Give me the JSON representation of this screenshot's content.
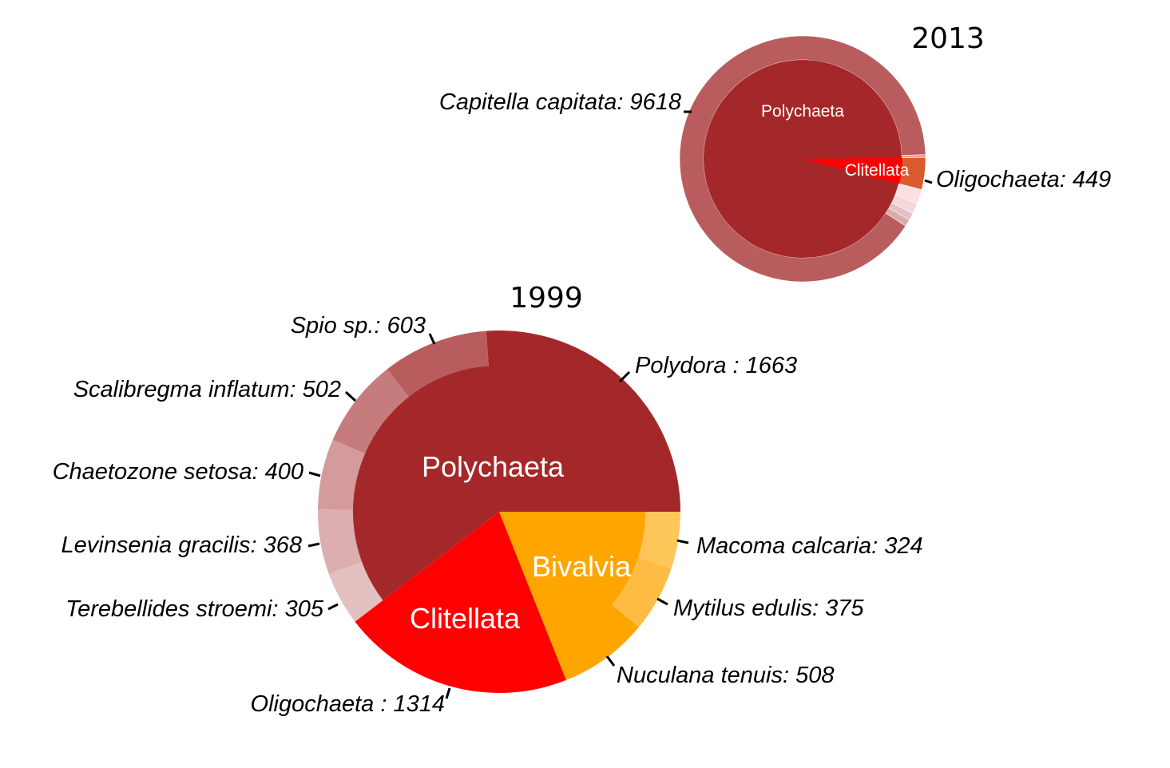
{
  "chart_data": [
    {
      "type": "sunburst",
      "title": "2013",
      "groups": [
        {
          "name": "Polychaeta",
          "color": "#A4282A"
        },
        {
          "name": "Clitellata",
          "color": "#FF0000"
        }
      ],
      "inner_ring": [
        {
          "group": "Polychaeta",
          "value": 10200
        },
        {
          "group": "Clitellata",
          "value": 449
        },
        {
          "group": "",
          "value": 40
        }
      ],
      "outer_ring": [
        {
          "label": "Capitella capitata: 9618",
          "species": "Capitella capitata",
          "value": 9618,
          "group": "Polychaeta",
          "color": "#B95C5D"
        },
        {
          "label": "",
          "value": 100,
          "group": "Polychaeta",
          "color": "#D9ABAB"
        },
        {
          "label": "",
          "value": 100,
          "group": "Polychaeta",
          "color": "#E3C1C2"
        },
        {
          "label": "",
          "value": 150,
          "group": "Polychaeta",
          "color": "#F7D6DA"
        },
        {
          "label": "",
          "value": 200,
          "group": "Polychaeta",
          "color": "#FBDFE3"
        },
        {
          "label": "Oligochaeta: 449",
          "species": "Oligochaeta",
          "value": 449,
          "group": "Clitellata",
          "color": "#DB5A30"
        },
        {
          "label": "",
          "value": 40,
          "group": "",
          "color": "#F2A07E"
        }
      ]
    },
    {
      "type": "sunburst",
      "title": "1999",
      "groups": [
        {
          "name": "Polychaeta",
          "color": "#A4282A"
        },
        {
          "name": "Clitellata",
          "color": "#FF0000"
        },
        {
          "name": "Bivalvia",
          "color": "#FFA500"
        }
      ],
      "inner_ring": [
        {
          "group": "Polychaeta",
          "value": 3841
        },
        {
          "group": "Clitellata",
          "value": 1314
        },
        {
          "group": "Bivalvia",
          "value": 1207
        }
      ],
      "outer_ring": [
        {
          "label": "Polydora : 1663",
          "species": "Polydora",
          "value": 1663,
          "group": "Polychaeta",
          "color": "#A4282A"
        },
        {
          "label": "Spio sp.: 603",
          "species": "Spio sp.",
          "value": 603,
          "group": "Polychaeta",
          "color": "#B95C5D"
        },
        {
          "label": "Scalibregma inflatum: 502",
          "species": "Scalibregma inflatum",
          "value": 502,
          "group": "Polychaeta",
          "color": "#C67B7C"
        },
        {
          "label": "Chaetozone setosa: 400",
          "species": "Chaetozone setosa",
          "value": 400,
          "group": "Polychaeta",
          "color": "#D59B9C"
        },
        {
          "label": "Levinsenia gracilis: 368",
          "species": "Levinsenia gracilis",
          "value": 368,
          "group": "Polychaeta",
          "color": "#DCAEAF"
        },
        {
          "label": "Terebellides stroemi: 305",
          "species": "Terebellides stroemi",
          "value": 305,
          "group": "Polychaeta",
          "color": "#E3C0C0"
        },
        {
          "label": "Oligochaeta : 1314",
          "species": "Oligochaeta",
          "value": 1314,
          "group": "Clitellata",
          "color": "#FF0000"
        },
        {
          "label": "Nuculana tenuis: 508",
          "species": "Nuculana tenuis",
          "value": 508,
          "group": "Bivalvia",
          "color": "#FFA500"
        },
        {
          "label": "Mytilus edulis: 375",
          "species": "Mytilus edulis",
          "value": 375,
          "group": "Bivalvia",
          "color": "#FFBC45"
        },
        {
          "label": "Macoma calcaria: 324",
          "species": "Macoma calcaria",
          "value": 324,
          "group": "Bivalvia",
          "color": "#FFC65A"
        }
      ]
    }
  ]
}
